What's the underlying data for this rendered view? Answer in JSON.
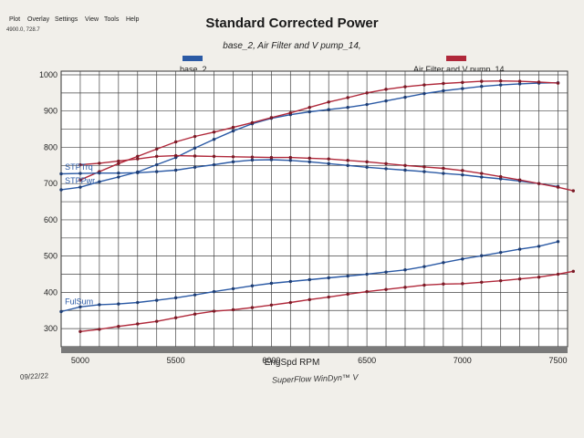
{
  "menu": {
    "items": [
      "Plot",
      "Overlay",
      "Settings",
      "View",
      "Tools",
      "Help"
    ],
    "coordinate_readout": "4900.0, 728.7"
  },
  "colors": {
    "base": "#2b5aa5",
    "pump": "#b0283a"
  },
  "chart_data": {
    "type": "line",
    "title": "Standard Corrected Power",
    "subtitle": "base_2, Air Filter and V pump_14,",
    "xlabel": "EngSpd RPM",
    "footer": {
      "date": "09/22/22",
      "brand": "SuperFlow WinDyn™ V"
    },
    "legend": [
      {
        "name": "base_2",
        "color": "#2b5aa5",
        "placement": "top-left"
      },
      {
        "name": "Air Filter and V pump_14",
        "color": "#b0283a",
        "placement": "top-right"
      }
    ],
    "xlim": [
      4900,
      7550
    ],
    "ylim": [
      250,
      1010
    ],
    "xticks": [
      5000,
      5500,
      6000,
      6500,
      7000,
      7500
    ],
    "yticks": [
      300,
      400,
      500,
      600,
      700,
      800,
      900,
      1000
    ],
    "grid": true,
    "curve_labels": [
      {
        "text": "STPTrq",
        "x": 4910,
        "y": 728
      },
      {
        "text": "STPPwr",
        "x": 4910,
        "y": 690
      },
      {
        "text": "FulSum",
        "x": 4910,
        "y": 357
      }
    ],
    "series": [
      {
        "name": "base_2",
        "curve": "STPPwr",
        "color_key": "base",
        "x": [
          4900,
          5000,
          5100,
          5200,
          5300,
          5400,
          5500,
          5600,
          5700,
          5800,
          5900,
          6000,
          6100,
          6200,
          6300,
          6400,
          6500,
          6600,
          6700,
          6800,
          6900,
          7000,
          7100,
          7200,
          7300,
          7400,
          7500
        ],
        "y": [
          683,
          690,
          705,
          718,
          732,
          752,
          772,
          798,
          822,
          845,
          865,
          880,
          890,
          898,
          904,
          910,
          918,
          928,
          938,
          948,
          956,
          962,
          968,
          972,
          975,
          977,
          978
        ]
      },
      {
        "name": "Air Filter and V pump_14",
        "curve": "STPPwr",
        "color_key": "pump",
        "x": [
          5000,
          5100,
          5200,
          5300,
          5400,
          5500,
          5600,
          5700,
          5800,
          5900,
          6000,
          6100,
          6200,
          6300,
          6400,
          6500,
          6600,
          6700,
          6800,
          6900,
          7000,
          7100,
          7200,
          7300,
          7400,
          7500
        ],
        "y": [
          710,
          733,
          755,
          775,
          795,
          815,
          830,
          842,
          855,
          868,
          882,
          895,
          910,
          925,
          937,
          950,
          960,
          967,
          972,
          976,
          979,
          982,
          983,
          982,
          980,
          977
        ]
      },
      {
        "name": "base_2",
        "curve": "STPTrq",
        "color_key": "base",
        "x": [
          4900,
          5000,
          5100,
          5200,
          5300,
          5400,
          5500,
          5600,
          5700,
          5800,
          5900,
          6000,
          6100,
          6200,
          6300,
          6400,
          6500,
          6600,
          6700,
          6800,
          6900,
          7000,
          7100,
          7200,
          7300,
          7400,
          7500
        ],
        "y": [
          727,
          728,
          729,
          729,
          730,
          733,
          737,
          745,
          752,
          760,
          765,
          766,
          764,
          760,
          755,
          750,
          745,
          741,
          737,
          733,
          728,
          724,
          718,
          713,
          707,
          700,
          692
        ]
      },
      {
        "name": "Air Filter and V pump_14",
        "curve": "STPTrq",
        "color_key": "pump",
        "x": [
          5000,
          5100,
          5200,
          5300,
          5400,
          5500,
          5600,
          5700,
          5800,
          5900,
          6000,
          6100,
          6200,
          6300,
          6400,
          6500,
          6600,
          6700,
          6800,
          6900,
          7000,
          7100,
          7200,
          7300,
          7400,
          7500,
          7580
        ],
        "y": [
          752,
          756,
          762,
          768,
          775,
          777,
          776,
          775,
          774,
          773,
          772,
          772,
          770,
          768,
          764,
          760,
          755,
          750,
          746,
          742,
          736,
          728,
          719,
          710,
          700,
          690,
          680
        ]
      },
      {
        "name": "base_2",
        "curve": "FulSum",
        "color_key": "base",
        "x": [
          4900,
          5000,
          5100,
          5200,
          5300,
          5400,
          5500,
          5600,
          5700,
          5800,
          5900,
          6000,
          6100,
          6200,
          6300,
          6400,
          6500,
          6600,
          6700,
          6800,
          6900,
          7000,
          7100,
          7200,
          7300,
          7400,
          7500
        ],
        "y": [
          347,
          360,
          366,
          368,
          372,
          378,
          385,
          393,
          402,
          410,
          418,
          425,
          430,
          435,
          440,
          445,
          450,
          456,
          462,
          471,
          482,
          492,
          501,
          510,
          519,
          527,
          540
        ]
      },
      {
        "name": "Air Filter and V pump_14",
        "curve": "FulSum",
        "color_key": "pump",
        "x": [
          5000,
          5100,
          5200,
          5300,
          5400,
          5500,
          5600,
          5700,
          5800,
          5900,
          6000,
          6100,
          6200,
          6300,
          6400,
          6500,
          6600,
          6700,
          6800,
          6900,
          7000,
          7100,
          7200,
          7300,
          7400,
          7500,
          7580
        ],
        "y": [
          292,
          298,
          306,
          313,
          320,
          330,
          340,
          348,
          352,
          358,
          365,
          372,
          380,
          387,
          395,
          402,
          408,
          414,
          420,
          423,
          424,
          428,
          432,
          437,
          442,
          450,
          458
        ]
      }
    ]
  }
}
